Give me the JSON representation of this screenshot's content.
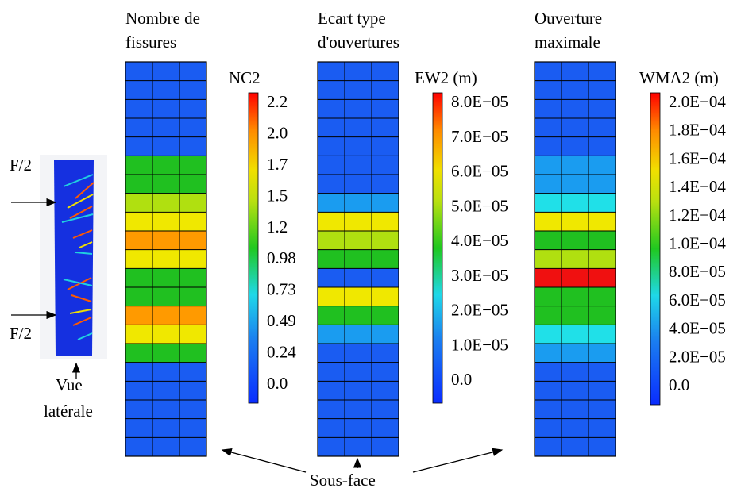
{
  "side_view": {
    "load_top": "F/2",
    "load_bottom": "F/2",
    "caption_line1": "Vue",
    "caption_line2": "latérale"
  },
  "panels": [
    {
      "title_line1": "Nombre de",
      "title_line2": "fissures",
      "colorbar_label": "NC2",
      "colorbar_ticks": [
        "2.2",
        "2.0",
        "1.7",
        "1.5",
        "1.2",
        "0.98",
        "0.73",
        "0.49",
        "0.24",
        "0.0"
      ]
    },
    {
      "title_line1": "Ecart type",
      "title_line2": "d'ouvertures",
      "colorbar_label": "EW2 (m)",
      "colorbar_ticks": [
        "8.0E−05",
        "7.0E−05",
        "6.0E−05",
        "5.0E−05",
        "4.0E−05",
        "3.0E−05",
        "2.0E−05",
        "1.0E−05",
        "0.0"
      ]
    },
    {
      "title_line1": "Ouverture",
      "title_line2": "maximale",
      "colorbar_label": "WMA2 (m)",
      "colorbar_ticks": [
        "2.0E−04",
        "1.8E−04",
        "1.6E−04",
        "1.4E−04",
        "1.2E−04",
        "1.0E−04",
        "8.0E−05",
        "6.0E−05",
        "4.0E−05",
        "2.0E−05",
        "0.0"
      ]
    }
  ],
  "bottom_label": "Sous-face"
}
